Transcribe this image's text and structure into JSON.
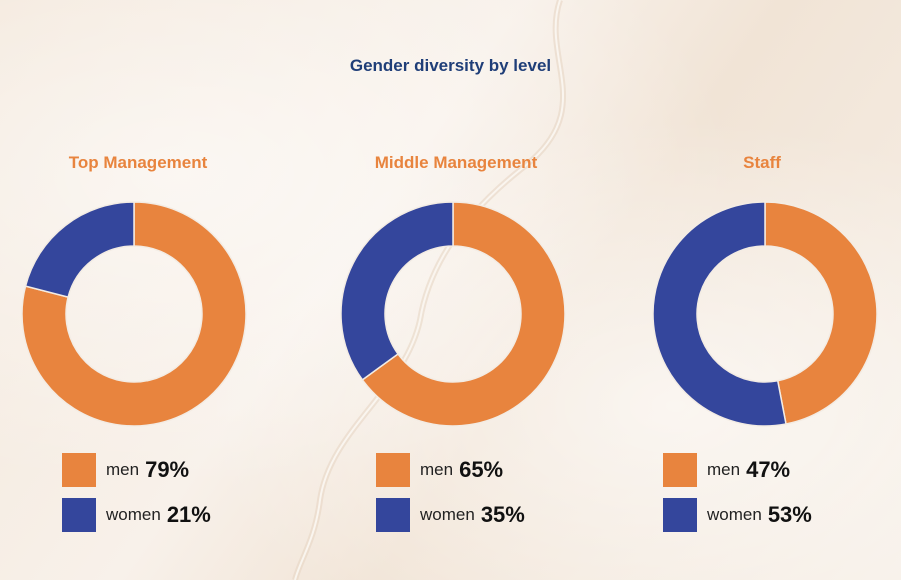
{
  "page_title": "Gender diversity by level",
  "colors": {
    "men": "#e8843e",
    "women": "#34469c",
    "title": "#1f3e78",
    "panel_title": "#e8843e"
  },
  "chart_data": [
    {
      "type": "pie",
      "title": "Top Management",
      "categories": [
        "men",
        "women"
      ],
      "values": [
        79,
        21
      ],
      "legend": [
        {
          "label": "men",
          "value": "79%"
        },
        {
          "label": "women",
          "value": "21%"
        }
      ]
    },
    {
      "type": "pie",
      "title": "Middle Management",
      "categories": [
        "men",
        "women"
      ],
      "values": [
        65,
        35
      ],
      "legend": [
        {
          "label": "men",
          "value": "65%"
        },
        {
          "label": "women",
          "value": "35%"
        }
      ]
    },
    {
      "type": "pie",
      "title": "Staff",
      "categories": [
        "men",
        "women"
      ],
      "values": [
        47,
        53
      ],
      "legend": [
        {
          "label": "men",
          "value": "47%"
        },
        {
          "label": "women",
          "value": "53%"
        }
      ]
    }
  ]
}
